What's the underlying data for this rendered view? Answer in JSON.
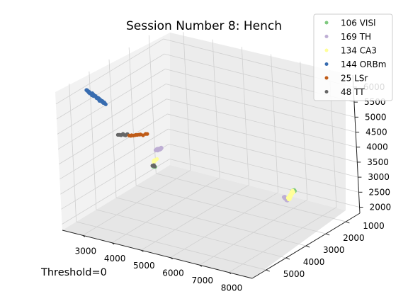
{
  "chart_data": {
    "type": "scatter",
    "title": "Session Number 8: Hench",
    "footer_text": "Threshold=0",
    "xlabel": "",
    "ylabel": "",
    "zlabel": "",
    "x_ticks": [
      "3000",
      "4000",
      "5000",
      "6000",
      "7000",
      "8000"
    ],
    "y_ticks": [
      "1000",
      "2000",
      "3000",
      "4000",
      "5000"
    ],
    "z_ticks": [
      "2000",
      "2500",
      "3000",
      "3500",
      "4000",
      "4500",
      "5000",
      "5500",
      "6000"
    ],
    "xlim": [
      2300,
      8800
    ],
    "ylim": [
      300,
      5700
    ],
    "zlim": [
      1800,
      6400
    ],
    "grid": true,
    "legend_position": "top-right",
    "series": [
      {
        "name": "106 VISl",
        "color": "#7fc97f",
        "segments": [
          {
            "from": [
              7000,
              900,
              2350
            ],
            "to": [
              7300,
              1400,
              2600
            ],
            "count": 22
          },
          {
            "from": [
              3900,
              3300,
              3350
            ],
            "to": [
              4050,
              3550,
              3500
            ],
            "count": 10
          }
        ]
      },
      {
        "name": "169 TH",
        "color": "#beaed4",
        "segments": [
          {
            "from": [
              8000,
              2700,
              3000
            ],
            "to": [
              8300,
              3200,
              3400
            ],
            "count": 16
          },
          {
            "from": [
              4700,
              4300,
              4500
            ],
            "to": [
              5300,
              4900,
              4950
            ],
            "count": 30
          }
        ]
      },
      {
        "name": "134 CA3",
        "color": "#ffff99",
        "segments": [
          {
            "from": [
              7350,
              1450,
              2650
            ],
            "to": [
              7950,
              2550,
              2950
            ],
            "count": 30
          },
          {
            "from": [
              4300,
              3900,
              3850
            ],
            "to": [
              4600,
              4200,
              4150
            ],
            "count": 8
          }
        ]
      },
      {
        "name": "144 ORBm",
        "color": "#386cb0",
        "segments": [
          {
            "from": [
              2600,
              4600,
              6100
            ],
            "to": [
              3900,
              5550,
              6350
            ],
            "count": 60
          }
        ]
      },
      {
        "name": "25 LSr",
        "color": "#f0027f",
        "segments": []
      },
      {
        "name": "48 TT",
        "color": "#666666",
        "segments": [
          {
            "from": [
              4100,
              3600,
              3550
            ],
            "to": [
              4150,
              3700,
              3600
            ],
            "count": 4
          },
          {
            "from": [
              4400,
              5700,
              5500
            ],
            "to": [
              4700,
              5650,
              5550
            ],
            "count": 10
          }
        ]
      },
      {
        "name": "25 LSr",
        "color": "#bf5b17",
        "segments": [
          {
            "from": [
              4750,
              5650,
              5550
            ],
            "to": [
              5350,
              5600,
              5700
            ],
            "count": 14
          }
        ]
      }
    ],
    "legend": [
      {
        "label": "106 VISl",
        "color": "#7fc97f"
      },
      {
        "label": "169 TH",
        "color": "#beaed4"
      },
      {
        "label": "134 CA3",
        "color": "#ffff99"
      },
      {
        "label": "144 ORBm",
        "color": "#386cb0"
      },
      {
        "label": "25 LSr",
        "color": "#bf5b17"
      },
      {
        "label": "48 TT",
        "color": "#666666"
      }
    ]
  }
}
